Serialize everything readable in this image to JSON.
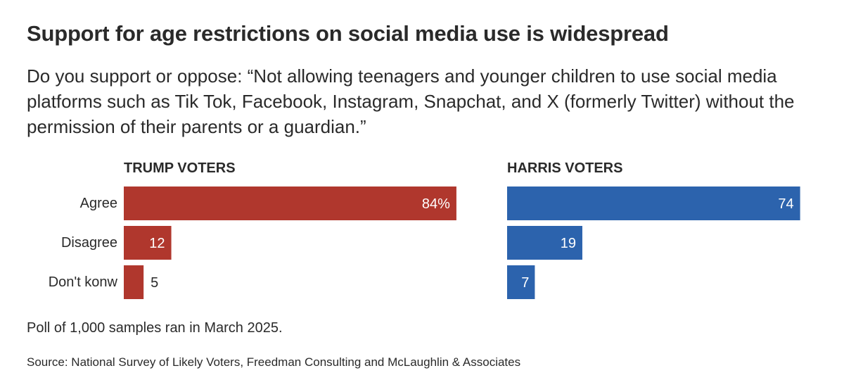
{
  "chart_data": {
    "type": "bar",
    "orientation": "horizontal",
    "title": "Support for age restrictions on social media use is widespread",
    "subtitle": "Do you support or oppose: “Not allowing teenagers and younger children to use social media platforms such as Tik Tok, Facebook, Instagram, Snapchat, and X (formerly Twitter) without the permission of their parents or a guardian.”",
    "categories": [
      "Agree",
      "Disagree",
      "Don't konw"
    ],
    "series": [
      {
        "name": "TRUMP VOTERS",
        "color": "#b0372d",
        "values": [
          84,
          12,
          5
        ],
        "data_labels": [
          "84%",
          "12",
          "5"
        ]
      },
      {
        "name": "HARRIS VOTERS",
        "color": "#2c63ad",
        "values": [
          74,
          19,
          7
        ],
        "data_labels": [
          "74",
          "19",
          "7"
        ]
      }
    ],
    "xlim": [
      0,
      100
    ],
    "grid": false,
    "footnote": "Poll of 1,000 samples ran in March 2025.",
    "source": "Source: National Survey of Likely Voters, Freedman Consulting and McLaughlin & Associates"
  }
}
